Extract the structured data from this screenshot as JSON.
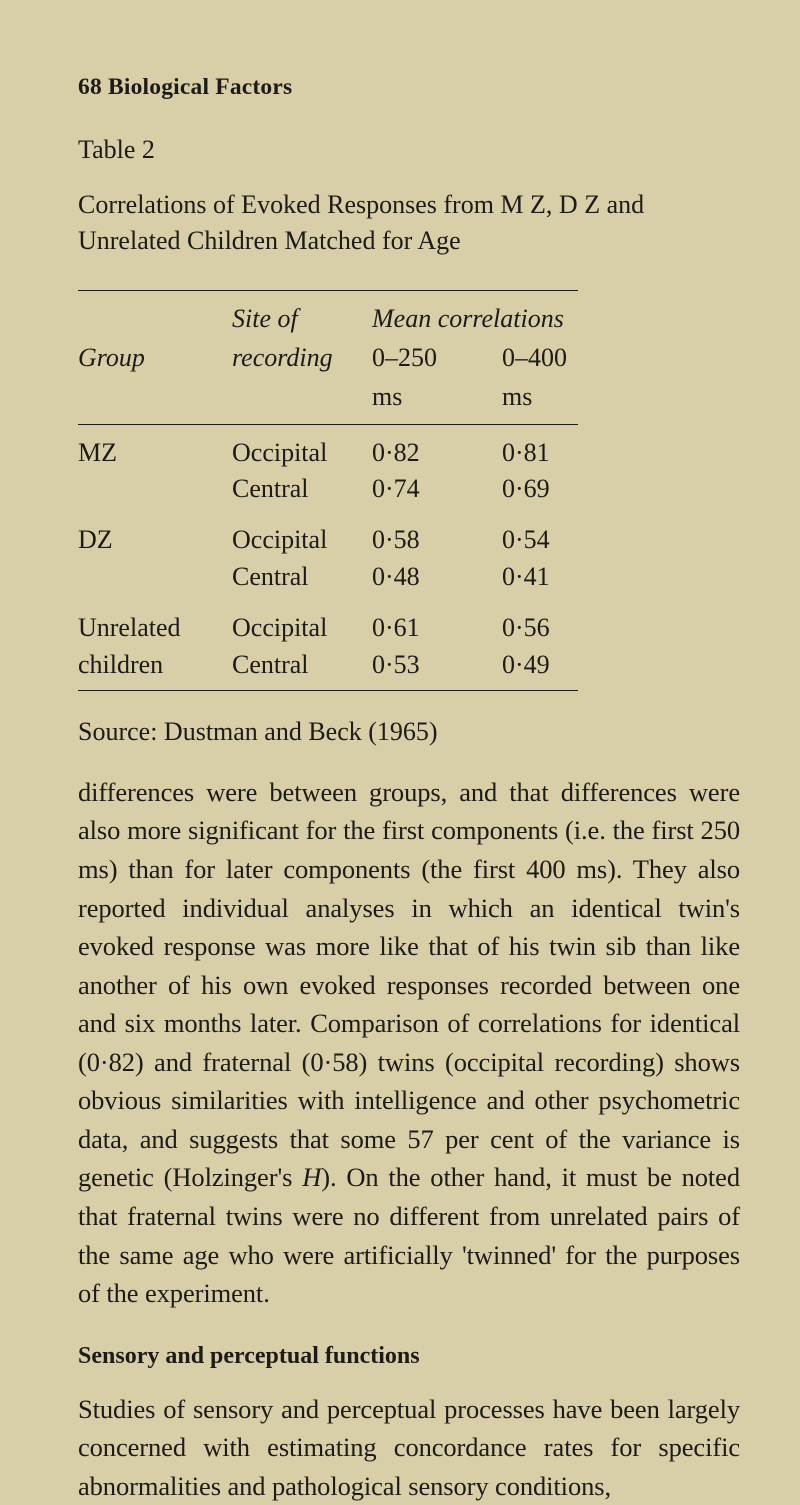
{
  "colors": {
    "page_bg": "#d8cfa9",
    "text": "#1c1b17",
    "rule": "#1c1b17"
  },
  "typography": {
    "body_family": "Times New Roman, serif",
    "header_size_pt": 18,
    "title_size_pt": 20,
    "table_size_pt": 20,
    "body_size_pt": 20,
    "section_head_size_pt": 18
  },
  "header": "68  Biological Factors",
  "table": {
    "label": "Table 2",
    "title": "Correlations of Evoked Responses from M Z, D Z and Unrelated Children Matched for Age",
    "head": {
      "group": "Group",
      "site": "Site of recording",
      "mc_label": "Mean correlations",
      "col1": "0–250 ms",
      "col2": "0–400 ms"
    },
    "groups": [
      {
        "name": "MZ",
        "rows": [
          {
            "site": "Occipital",
            "c1": "0·82",
            "c2": "0·81"
          },
          {
            "site": "Central",
            "c1": "0·74",
            "c2": "0·69"
          }
        ]
      },
      {
        "name": "DZ",
        "rows": [
          {
            "site": "Occipital",
            "c1": "0·58",
            "c2": "0·54"
          },
          {
            "site": "Central",
            "c1": "0·48",
            "c2": "0·41"
          }
        ]
      },
      {
        "name": "Unrelated children",
        "rows": [
          {
            "site": "Occipital",
            "c1": "0·61",
            "c2": "0·56"
          },
          {
            "site": "Central",
            "c1": "0·53",
            "c2": "0·49"
          }
        ]
      }
    ],
    "source": "Source: Dustman and Beck (1965)"
  },
  "paragraph1_pre": "differences were between groups, and that differences were also more significant for the first components (i.e. the first 250 ms) than for later components (the first 400 ms). They also reported individual analyses in which an identical twin's evoked response was more like that of his twin sib than like another of his own evoked responses recorded between one and six months later. Comparison of correla­tions for identical (0·82) and fraternal (0·58) twins (occipital recording) shows obvious similarities with intelligence and other psychometric data, and suggests that some 57 per cent of the variance is genetic (Holzinger's ",
  "paragraph1_H": "H",
  "paragraph1_post": "). On the other hand, it must be noted that fraternal twins were no different from unrelated pairs of the same age who were artificially 'twinned' for the purposes of the experiment.",
  "section_head": "Sensory and perceptual functions",
  "paragraph2": "Studies of sensory and perceptual processes have been largely concerned with estimating concordance rates for specific abnormalities and pathological sensory conditions,"
}
